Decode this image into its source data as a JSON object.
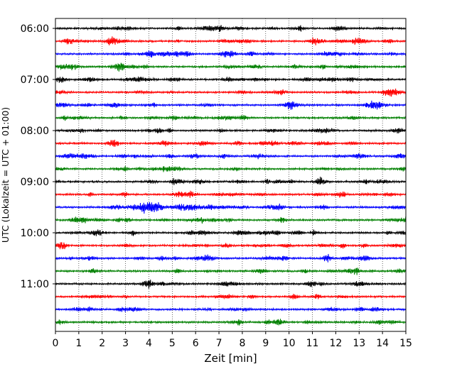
{
  "chart_data": {
    "type": "line",
    "title": "",
    "xlabel": "Zeit  [min]",
    "ylabel": "UTC (Lokalzeit = UTC + 01:00)",
    "xlim": [
      0,
      15
    ],
    "xticks": [
      "0",
      "1",
      "2",
      "3",
      "4",
      "5",
      "6",
      "7",
      "8",
      "9",
      "10",
      "11",
      "12",
      "13",
      "14",
      "15"
    ],
    "yticks": [
      "06:00",
      "07:00",
      "08:00",
      "09:00",
      "10:00",
      "11:00"
    ],
    "grid": "vertical dotted",
    "trace_interval_min": 15,
    "trace_colors": [
      "#000000",
      "#ff0000",
      "#0000ff",
      "#008000"
    ],
    "traces": [
      {
        "start": "06:00",
        "color": "#000000"
      },
      {
        "start": "06:15",
        "color": "#ff0000"
      },
      {
        "start": "06:30",
        "color": "#0000ff"
      },
      {
        "start": "06:45",
        "color": "#008000"
      },
      {
        "start": "07:00",
        "color": "#000000"
      },
      {
        "start": "07:15",
        "color": "#ff0000"
      },
      {
        "start": "07:30",
        "color": "#0000ff"
      },
      {
        "start": "07:45",
        "color": "#008000"
      },
      {
        "start": "08:00",
        "color": "#000000"
      },
      {
        "start": "08:15",
        "color": "#ff0000"
      },
      {
        "start": "08:30",
        "color": "#0000ff"
      },
      {
        "start": "08:45",
        "color": "#008000"
      },
      {
        "start": "09:00",
        "color": "#000000"
      },
      {
        "start": "09:15",
        "color": "#ff0000"
      },
      {
        "start": "09:30",
        "color": "#0000ff",
        "event": {
          "from_min": 3.0,
          "to_min": 7.2,
          "peak_min": 4.0
        }
      },
      {
        "start": "09:45",
        "color": "#008000"
      },
      {
        "start": "10:00",
        "color": "#000000"
      },
      {
        "start": "10:15",
        "color": "#ff0000"
      },
      {
        "start": "10:30",
        "color": "#0000ff"
      },
      {
        "start": "10:45",
        "color": "#008000"
      },
      {
        "start": "11:00",
        "color": "#000000"
      },
      {
        "start": "11:15",
        "color": "#ff0000"
      },
      {
        "start": "11:30",
        "color": "#0000ff"
      },
      {
        "start": "11:45",
        "color": "#008000"
      }
    ]
  }
}
